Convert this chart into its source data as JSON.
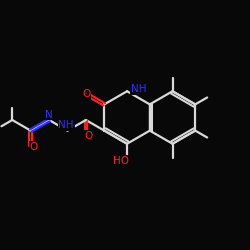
{
  "bg_color": "#080808",
  "bond_color": "#d8d8d8",
  "atom_colors": {
    "O": "#ff2020",
    "N": "#3030ff",
    "C": "#d8d8d8"
  },
  "figsize": [
    2.5,
    2.5
  ],
  "dpi": 100,
  "xlim": [
    0,
    10
  ],
  "ylim": [
    0,
    10
  ]
}
